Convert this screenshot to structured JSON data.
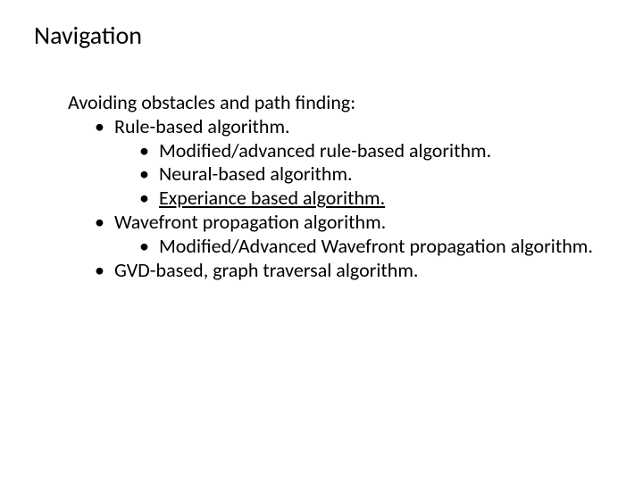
{
  "slide": {
    "title": "Navigation",
    "intro": "Avoiding obstacles and path finding:",
    "items": {
      "rule": "Rule-based algorithm.",
      "rule_mod": "Modified/advanced rule-based algorithm.",
      "neural": "Neural-based algorithm.",
      "experience": "Experiance based algorithm.",
      "wavefront": "Wavefront propagation algorithm.",
      "wave_mod": "Modified/Advanced Wavefront propagation algorithm.",
      "gvd": "GVD-based, graph traversal algorithm."
    }
  },
  "style": {
    "bullet_glyph": "•",
    "font_family": "Calibri",
    "title_fontsize_pt": 28,
    "body_fontsize_pt": 22,
    "text_color": "#000000",
    "background_color": "#ffffff",
    "link_underline": true
  }
}
